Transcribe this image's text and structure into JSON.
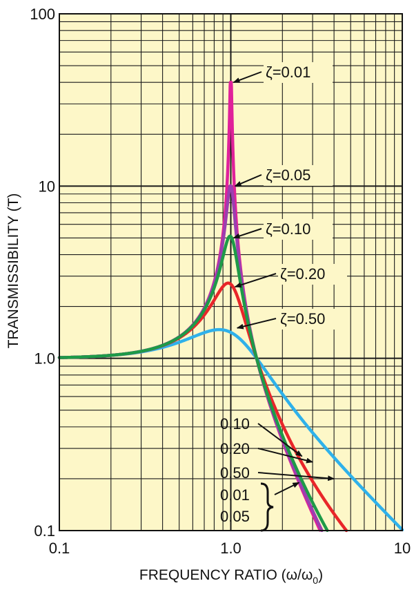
{
  "chart_data": {
    "type": "line",
    "x_scale": "log",
    "y_scale": "log",
    "xlim": [
      0.1,
      10
    ],
    "ylim": [
      0.1,
      100
    ],
    "grid": true,
    "background_color": "#fdf7c8",
    "xlabel": "FREQUENCY RATIO (ω/ω",
    "xlabel_sub": "0",
    "xlabel_end": ")",
    "ylabel": "TRANSMISSIBILITY (T)",
    "x_ticks": [
      {
        "value": 0.1,
        "label": "0.1"
      },
      {
        "value": 1,
        "label": "1.0"
      },
      {
        "value": 10,
        "label": "10"
      }
    ],
    "y_ticks": [
      {
        "value": 0.1,
        "label": "0.1"
      },
      {
        "value": 1,
        "label": "1.0"
      },
      {
        "value": 10,
        "label": "10"
      },
      {
        "value": 100,
        "label": "100"
      }
    ],
    "series": [
      {
        "zeta": 0.01,
        "color": "#e0219a"
      },
      {
        "zeta": 0.05,
        "color": "#9b3fb0"
      },
      {
        "zeta": 0.1,
        "color": "#1e9a48"
      },
      {
        "zeta": 0.2,
        "color": "#e8262a"
      },
      {
        "zeta": 0.5,
        "color": "#2fb1ea"
      }
    ],
    "annotations": [
      {
        "text": "ζ=0.01",
        "target": [
          1.0,
          40
        ]
      },
      {
        "text": "ζ=0.05",
        "target": [
          1.02,
          10
        ]
      },
      {
        "text": "ζ=0.10",
        "target": [
          1.0,
          5
        ]
      },
      {
        "text": "ζ=0.20",
        "target": [
          1.02,
          2.6
        ]
      },
      {
        "text": "ζ=0.50",
        "target": [
          1.05,
          1.5
        ]
      }
    ],
    "tail_labels": [
      {
        "text": "0.10",
        "target": [
          2.6,
          0.27
        ]
      },
      {
        "text": "0.20",
        "target": [
          3.0,
          0.25
        ]
      },
      {
        "text": "0.50",
        "target": [
          4.0,
          0.2
        ]
      },
      {
        "text": "0.01",
        "target": [
          2.5,
          0.19
        ]
      },
      {
        "text": "0.05",
        "target": null
      }
    ]
  }
}
